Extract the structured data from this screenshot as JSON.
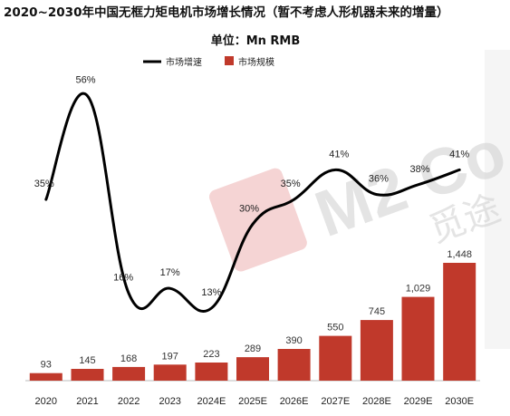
{
  "chart_data": {
    "type": "bar",
    "title": "2020~2030年中国无框力矩电机市场增长情况（暂不考虑人形机器未来的增量）",
    "unit_label": "单位：Mn RMB",
    "categories": [
      "2020",
      "2021",
      "2022",
      "2023",
      "2024E",
      "2025E",
      "2026E",
      "2027E",
      "2028E",
      "2029E",
      "2030E"
    ],
    "series": [
      {
        "name": "市场规模",
        "type": "bar",
        "color": "#c0392b",
        "values": [
          93,
          145,
          168,
          197,
          223,
          289,
          390,
          550,
          745,
          1029,
          1448
        ],
        "labels": [
          "93",
          "145",
          "168",
          "197",
          "223",
          "289",
          "390",
          "550",
          "745",
          "1,029",
          "1,448"
        ]
      },
      {
        "name": "市场增速",
        "type": "line",
        "color": "#000000",
        "values": [
          35,
          56,
          16,
          17,
          13,
          30,
          35,
          41,
          36,
          38,
          41
        ],
        "labels": [
          "35%",
          "56%",
          "16%",
          "17%",
          "13%",
          "30%",
          "35%",
          "41%",
          "36%",
          "38%",
          "41%"
        ]
      }
    ],
    "legend": {
      "placement": "top-center"
    },
    "grid": false
  },
  "watermark": {
    "text": "M2 Co",
    "text_cn": "觅途"
  }
}
